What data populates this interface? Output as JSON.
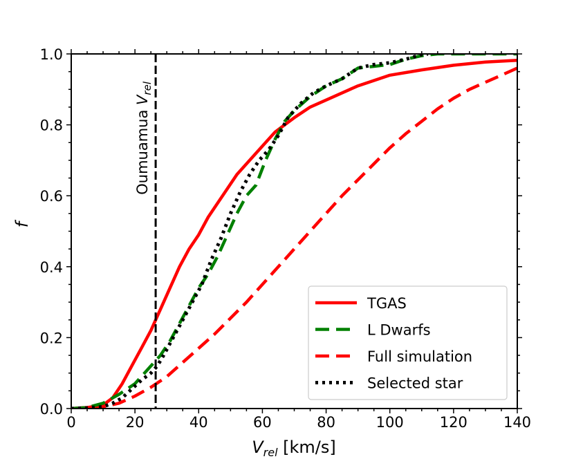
{
  "chart_data": {
    "type": "line",
    "title": "",
    "xlabel_main": "V",
    "xlabel_sub": "rel",
    "xlabel_unit": " [km/s]",
    "ylabel": "f",
    "xlim": [
      0,
      140
    ],
    "ylim": [
      0,
      1.0
    ],
    "xticks": [
      0,
      20,
      40,
      60,
      80,
      100,
      120,
      140
    ],
    "yticks": [
      0.0,
      0.2,
      0.4,
      0.6,
      0.8,
      1.0
    ],
    "ytick_labels": [
      "0.0",
      "0.2",
      "0.4",
      "0.6",
      "0.8",
      "1.0"
    ],
    "grid": false,
    "legend_position": "lower-right",
    "annotation": {
      "text_main": "Oumuamua V",
      "text_sub": "rel",
      "x": 26.5,
      "color": "#000000"
    },
    "series": [
      {
        "name": "TGAS",
        "style": "solid",
        "color": "#ff0000",
        "x": [
          0,
          5,
          10,
          13,
          16,
          19,
          22,
          25,
          28,
          31,
          34,
          37,
          40,
          43,
          46,
          49,
          52,
          55,
          58,
          61,
          64,
          67,
          70,
          75,
          80,
          85,
          90,
          95,
          100,
          110,
          120,
          130,
          140
        ],
        "y": [
          0,
          0.003,
          0.01,
          0.03,
          0.07,
          0.12,
          0.17,
          0.22,
          0.28,
          0.34,
          0.4,
          0.45,
          0.49,
          0.54,
          0.58,
          0.62,
          0.66,
          0.69,
          0.72,
          0.75,
          0.78,
          0.8,
          0.82,
          0.85,
          0.87,
          0.89,
          0.91,
          0.925,
          0.94,
          0.955,
          0.968,
          0.977,
          0.982
        ]
      },
      {
        "name": "L Dwarfs",
        "style": "dashed",
        "color": "#008000",
        "x": [
          0,
          5,
          10,
          15,
          20,
          25,
          28,
          31,
          34,
          37,
          40,
          43,
          46,
          49,
          52,
          55,
          58,
          61,
          64,
          67,
          70,
          75,
          80,
          85,
          90,
          95,
          100,
          105,
          110,
          115,
          120,
          140
        ],
        "y": [
          0,
          0.003,
          0.015,
          0.04,
          0.07,
          0.12,
          0.15,
          0.19,
          0.24,
          0.29,
          0.34,
          0.38,
          0.43,
          0.49,
          0.55,
          0.6,
          0.63,
          0.7,
          0.76,
          0.81,
          0.84,
          0.88,
          0.91,
          0.93,
          0.96,
          0.965,
          0.97,
          0.985,
          0.995,
          1.0,
          1.0,
          1.0
        ]
      },
      {
        "name": "Full simulation",
        "style": "dashed",
        "color": "#ff0000",
        "x": [
          0,
          10,
          15,
          20,
          25,
          30,
          35,
          40,
          45,
          50,
          55,
          60,
          65,
          70,
          75,
          80,
          85,
          90,
          95,
          100,
          105,
          110,
          115,
          120,
          125,
          130,
          135,
          140
        ],
        "y": [
          0,
          0.005,
          0.015,
          0.035,
          0.06,
          0.09,
          0.13,
          0.17,
          0.21,
          0.255,
          0.3,
          0.35,
          0.4,
          0.45,
          0.5,
          0.55,
          0.6,
          0.645,
          0.69,
          0.735,
          0.775,
          0.81,
          0.845,
          0.875,
          0.9,
          0.92,
          0.94,
          0.96
        ]
      },
      {
        "name": "Selected star",
        "style": "dotted",
        "color": "#000000",
        "x": [
          0,
          5,
          10,
          13,
          16,
          19,
          22,
          25,
          27,
          29,
          32,
          35,
          38,
          41,
          44,
          47,
          50,
          53,
          56,
          59,
          62,
          65,
          68,
          72,
          76,
          80,
          85,
          90,
          95,
          100,
          105,
          110,
          112
        ],
        "y": [
          0,
          0.002,
          0.005,
          0.015,
          0.03,
          0.055,
          0.08,
          0.1,
          0.12,
          0.15,
          0.2,
          0.25,
          0.3,
          0.35,
          0.42,
          0.48,
          0.55,
          0.61,
          0.66,
          0.7,
          0.73,
          0.77,
          0.82,
          0.86,
          0.89,
          0.91,
          0.93,
          0.96,
          0.97,
          0.975,
          0.985,
          0.998,
          1.0
        ]
      }
    ]
  }
}
